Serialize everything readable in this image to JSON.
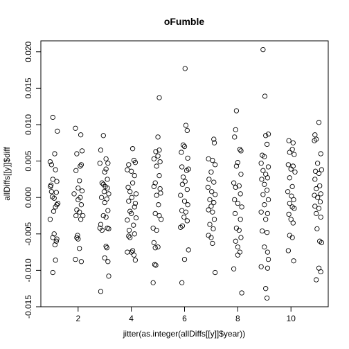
{
  "chart_data": {
    "type": "scatter",
    "title": "oFumble",
    "xlabel": "jitter(as.integer(allDiffs[[y]]$year))",
    "ylabel": "allDiffs[[y]]$diff",
    "xlim": [
      0.6,
      11.4
    ],
    "ylim": [
      -0.015,
      0.0215
    ],
    "x_ticks": [
      2,
      4,
      6,
      8,
      10
    ],
    "x_tick_labels": [
      "2",
      "4",
      "6",
      "8",
      "10"
    ],
    "y_ticks": [
      -0.015,
      -0.01,
      -0.005,
      0.0,
      0.005,
      0.01,
      0.015,
      0.02
    ],
    "y_tick_labels": [
      "-0.015",
      "-0.010",
      "-0.005",
      "0.000",
      "0.005",
      "0.010",
      "0.015",
      "0.020"
    ],
    "grid": false,
    "marker": "open-circle",
    "points": [
      [
        1.05,
        0.011
      ],
      [
        1.22,
        0.0091
      ],
      [
        1.12,
        0.006
      ],
      [
        0.95,
        0.0049
      ],
      [
        1.0,
        0.0045
      ],
      [
        1.15,
        0.0038
      ],
      [
        1.05,
        0.0025
      ],
      [
        1.2,
        0.0022
      ],
      [
        0.98,
        0.0017
      ],
      [
        0.96,
        0.0015
      ],
      [
        1.0,
        0.0008
      ],
      [
        1.18,
        0.0007
      ],
      [
        1.03,
        0.0001
      ],
      [
        1.1,
        -0.0001
      ],
      [
        1.24,
        -0.0008
      ],
      [
        1.2,
        -0.001
      ],
      [
        1.15,
        -0.0013
      ],
      [
        1.08,
        -0.0019
      ],
      [
        0.95,
        -0.003
      ],
      [
        1.1,
        -0.005
      ],
      [
        1.05,
        -0.0055
      ],
      [
        1.2,
        -0.0057
      ],
      [
        1.18,
        -0.006
      ],
      [
        1.13,
        -0.0065
      ],
      [
        1.15,
        -0.0086
      ],
      [
        1.05,
        -0.0103
      ],
      [
        1.9,
        0.0095
      ],
      [
        2.1,
        0.0086
      ],
      [
        2.15,
        0.0064
      ],
      [
        1.95,
        0.006
      ],
      [
        2.12,
        0.0045
      ],
      [
        2.08,
        0.0043
      ],
      [
        1.92,
        0.0037
      ],
      [
        2.05,
        0.0023
      ],
      [
        2.0,
        0.0013
      ],
      [
        2.15,
        0.0009
      ],
      [
        1.85,
        0.0005
      ],
      [
        2.08,
        0.0
      ],
      [
        2.0,
        -0.0003
      ],
      [
        2.12,
        -0.001
      ],
      [
        1.95,
        -0.0017
      ],
      [
        2.05,
        -0.002
      ],
      [
        2.18,
        -0.0025
      ],
      [
        1.92,
        -0.0025
      ],
      [
        2.1,
        -0.003
      ],
      [
        1.98,
        -0.0052
      ],
      [
        1.95,
        -0.0055
      ],
      [
        2.0,
        -0.0057
      ],
      [
        2.05,
        -0.007
      ],
      [
        1.9,
        -0.0085
      ],
      [
        2.12,
        -0.0088
      ],
      [
        2.95,
        0.0085
      ],
      [
        2.85,
        0.0065
      ],
      [
        3.05,
        0.0053
      ],
      [
        2.82,
        0.0047
      ],
      [
        3.12,
        0.0047
      ],
      [
        3.05,
        0.0039
      ],
      [
        3.0,
        0.0035
      ],
      [
        3.1,
        0.0025
      ],
      [
        2.9,
        0.002
      ],
      [
        2.95,
        0.0018
      ],
      [
        3.02,
        0.0015
      ],
      [
        3.1,
        0.0013
      ],
      [
        2.98,
        0.0008
      ],
      [
        3.15,
        0.0005
      ],
      [
        2.88,
        0.0
      ],
      [
        3.08,
        -0.0002
      ],
      [
        3.0,
        -0.0007
      ],
      [
        3.12,
        -0.0018
      ],
      [
        2.95,
        -0.0025
      ],
      [
        3.05,
        -0.0027
      ],
      [
        2.85,
        -0.0037
      ],
      [
        2.82,
        -0.0042
      ],
      [
        3.1,
        -0.0042
      ],
      [
        3.15,
        -0.0043
      ],
      [
        2.9,
        -0.0045
      ],
      [
        3.05,
        -0.0067
      ],
      [
        3.08,
        -0.0069
      ],
      [
        3.0,
        -0.0083
      ],
      [
        3.12,
        -0.0088
      ],
      [
        3.15,
        -0.0108
      ],
      [
        2.85,
        -0.0129
      ],
      [
        4.05,
        0.0067
      ],
      [
        4.1,
        0.0051
      ],
      [
        4.15,
        0.0048
      ],
      [
        3.9,
        0.0045
      ],
      [
        3.85,
        0.0038
      ],
      [
        4.0,
        0.0036
      ],
      [
        4.12,
        0.003
      ],
      [
        4.05,
        0.002
      ],
      [
        3.88,
        0.0014
      ],
      [
        3.95,
        0.0008
      ],
      [
        4.18,
        0.0005
      ],
      [
        4.02,
        0.0
      ],
      [
        3.9,
        -0.0005
      ],
      [
        4.15,
        -0.0008
      ],
      [
        4.12,
        -0.0013
      ],
      [
        3.95,
        -0.0019
      ],
      [
        4.0,
        -0.0022
      ],
      [
        4.18,
        -0.0028
      ],
      [
        3.85,
        -0.0031
      ],
      [
        4.08,
        -0.0038
      ],
      [
        3.92,
        -0.0045
      ],
      [
        4.12,
        -0.005
      ],
      [
        3.9,
        -0.0053
      ],
      [
        3.95,
        -0.0055
      ],
      [
        4.05,
        -0.0073
      ],
      [
        3.85,
        -0.0075
      ],
      [
        4.0,
        -0.0075
      ],
      [
        4.1,
        -0.0079
      ],
      [
        4.15,
        -0.0086
      ],
      [
        5.05,
        0.0137
      ],
      [
        5.0,
        0.0083
      ],
      [
        4.92,
        0.0063
      ],
      [
        5.05,
        0.0065
      ],
      [
        5.0,
        0.0057
      ],
      [
        4.85,
        0.0053
      ],
      [
        5.08,
        0.0049
      ],
      [
        4.95,
        0.0043
      ],
      [
        5.05,
        0.003
      ],
      [
        4.9,
        0.002
      ],
      [
        4.85,
        0.0015
      ],
      [
        5.08,
        0.0012
      ],
      [
        5.1,
        0.0006
      ],
      [
        4.95,
        0.0003
      ],
      [
        5.02,
        -0.001
      ],
      [
        4.9,
        -0.0022
      ],
      [
        5.05,
        -0.0025
      ],
      [
        5.12,
        -0.003
      ],
      [
        4.82,
        -0.0042
      ],
      [
        4.95,
        -0.0045
      ],
      [
        4.85,
        -0.0062
      ],
      [
        4.9,
        -0.0069
      ],
      [
        5.0,
        -0.0068
      ],
      [
        4.88,
        -0.0092
      ],
      [
        4.92,
        -0.0093
      ],
      [
        4.82,
        -0.0117
      ],
      [
        6.02,
        0.0177
      ],
      [
        6.05,
        0.0099
      ],
      [
        6.1,
        0.0092
      ],
      [
        5.95,
        0.0072
      ],
      [
        6.0,
        0.007
      ],
      [
        5.88,
        0.0062
      ],
      [
        6.12,
        0.0054
      ],
      [
        5.9,
        0.0042
      ],
      [
        6.08,
        0.0037
      ],
      [
        6.15,
        0.0039
      ],
      [
        5.95,
        0.0028
      ],
      [
        6.02,
        0.0022
      ],
      [
        5.92,
        0.0018
      ],
      [
        6.1,
        0.0011
      ],
      [
        5.85,
        0.0003
      ],
      [
        6.0,
        -0.0005
      ],
      [
        6.12,
        -0.001
      ],
      [
        5.9,
        -0.0018
      ],
      [
        6.05,
        -0.002
      ],
      [
        5.98,
        -0.0027
      ],
      [
        6.1,
        -0.0032
      ],
      [
        5.92,
        -0.0039
      ],
      [
        5.85,
        -0.0041
      ],
      [
        6.15,
        -0.0072
      ],
      [
        6.0,
        -0.0085
      ],
      [
        5.9,
        -0.0117
      ],
      [
        7.1,
        0.008
      ],
      [
        7.12,
        0.0075
      ],
      [
        6.9,
        0.0053
      ],
      [
        7.05,
        0.0051
      ],
      [
        7.15,
        0.0045
      ],
      [
        7.0,
        0.0035
      ],
      [
        6.92,
        0.0025
      ],
      [
        7.1,
        0.0021
      ],
      [
        6.88,
        0.0014
      ],
      [
        7.02,
        0.0008
      ],
      [
        7.15,
        0.0004
      ],
      [
        6.95,
        -0.0003
      ],
      [
        7.1,
        -0.0007
      ],
      [
        7.0,
        -0.0012
      ],
      [
        6.9,
        -0.0017
      ],
      [
        7.05,
        -0.002
      ],
      [
        7.12,
        -0.003
      ],
      [
        6.95,
        -0.0037
      ],
      [
        7.08,
        -0.0043
      ],
      [
        6.9,
        -0.0052
      ],
      [
        7.0,
        -0.0055
      ],
      [
        7.05,
        -0.0063
      ],
      [
        7.15,
        -0.0103
      ],
      [
        7.95,
        0.0119
      ],
      [
        7.92,
        0.0093
      ],
      [
        7.88,
        0.0083
      ],
      [
        8.08,
        0.0066
      ],
      [
        8.12,
        0.0064
      ],
      [
        8.0,
        0.0048
      ],
      [
        7.95,
        0.0043
      ],
      [
        8.12,
        0.0032
      ],
      [
        7.85,
        0.002
      ],
      [
        8.05,
        0.0016
      ],
      [
        7.92,
        0.0014
      ],
      [
        8.1,
        0.0005
      ],
      [
        7.88,
        -0.0003
      ],
      [
        8.0,
        -0.0008
      ],
      [
        8.15,
        -0.0013
      ],
      [
        7.9,
        -0.0022
      ],
      [
        8.1,
        -0.003
      ],
      [
        7.95,
        -0.0042
      ],
      [
        8.05,
        -0.0045
      ],
      [
        8.12,
        -0.0055
      ],
      [
        7.92,
        -0.006
      ],
      [
        8.0,
        -0.0068
      ],
      [
        8.08,
        -0.0075
      ],
      [
        8.0,
        -0.0079
      ],
      [
        7.85,
        -0.0098
      ],
      [
        8.15,
        -0.0131
      ],
      [
        8.95,
        0.0203
      ],
      [
        9.02,
        0.0139
      ],
      [
        9.15,
        0.0087
      ],
      [
        9.05,
        0.0085
      ],
      [
        9.1,
        0.0073
      ],
      [
        8.92,
        0.0058
      ],
      [
        9.0,
        0.0056
      ],
      [
        8.88,
        0.0047
      ],
      [
        9.15,
        0.0042
      ],
      [
        8.95,
        0.0037
      ],
      [
        9.05,
        0.0032
      ],
      [
        9.12,
        0.0027
      ],
      [
        8.9,
        0.0025
      ],
      [
        9.0,
        0.0018
      ],
      [
        9.1,
        0.001
      ],
      [
        8.95,
        0.0004
      ],
      [
        9.15,
        -0.0003
      ],
      [
        9.0,
        -0.001
      ],
      [
        8.88,
        -0.002
      ],
      [
        9.12,
        -0.0022
      ],
      [
        9.05,
        -0.003
      ],
      [
        8.92,
        -0.0046
      ],
      [
        9.1,
        -0.0048
      ],
      [
        9.0,
        -0.0068
      ],
      [
        9.12,
        -0.0075
      ],
      [
        9.15,
        -0.0085
      ],
      [
        8.88,
        -0.0095
      ],
      [
        9.12,
        -0.0097
      ],
      [
        9.05,
        -0.0125
      ],
      [
        9.1,
        -0.0138
      ],
      [
        9.92,
        0.0078
      ],
      [
        10.08,
        0.0075
      ],
      [
        10.05,
        0.0066
      ],
      [
        9.95,
        0.0062
      ],
      [
        10.12,
        0.0059
      ],
      [
        9.9,
        0.0045
      ],
      [
        10.08,
        0.0043
      ],
      [
        10.0,
        0.0039
      ],
      [
        10.15,
        0.0035
      ],
      [
        9.95,
        0.0027
      ],
      [
        10.05,
        0.0015
      ],
      [
        9.88,
        0.0008
      ],
      [
        10.02,
        0.0002
      ],
      [
        10.1,
        -0.0003
      ],
      [
        9.95,
        -0.0008
      ],
      [
        10.05,
        -0.0013
      ],
      [
        10.12,
        -0.0015
      ],
      [
        9.92,
        -0.0023
      ],
      [
        10.0,
        -0.003
      ],
      [
        10.08,
        -0.0035
      ],
      [
        9.95,
        -0.0052
      ],
      [
        10.05,
        -0.0055
      ],
      [
        9.9,
        -0.0073
      ],
      [
        10.1,
        -0.0087
      ],
      [
        11.05,
        0.0103
      ],
      [
        10.9,
        0.0086
      ],
      [
        10.95,
        0.008
      ],
      [
        10.88,
        0.0078
      ],
      [
        11.12,
        0.006
      ],
      [
        11.0,
        0.0047
      ],
      [
        11.15,
        0.0038
      ],
      [
        10.92,
        0.0036
      ],
      [
        11.05,
        0.0033
      ],
      [
        10.9,
        0.0025
      ],
      [
        11.08,
        0.0016
      ],
      [
        10.95,
        0.0012
      ],
      [
        11.12,
        0.0005
      ],
      [
        10.88,
        0.0003
      ],
      [
        11.0,
        0.0
      ],
      [
        11.1,
        -0.0006
      ],
      [
        10.9,
        -0.0012
      ],
      [
        11.05,
        -0.0015
      ],
      [
        10.95,
        -0.0022
      ],
      [
        11.12,
        -0.0027
      ],
      [
        10.98,
        -0.0043
      ],
      [
        11.08,
        -0.006
      ],
      [
        11.15,
        -0.0062
      ],
      [
        11.05,
        -0.0097
      ],
      [
        11.12,
        -0.0102
      ],
      [
        10.95,
        -0.0113
      ]
    ]
  }
}
